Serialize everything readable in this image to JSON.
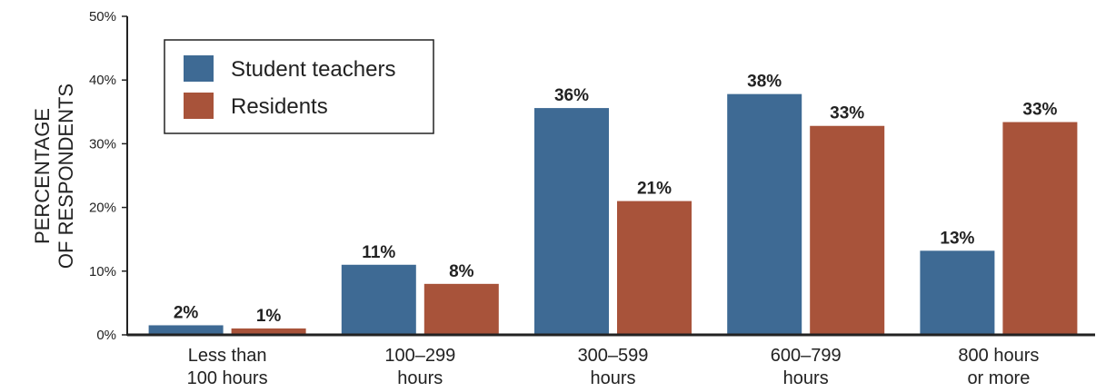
{
  "chart_data": {
    "type": "bar",
    "title": "",
    "xlabel": "",
    "ylabel_lines": [
      "PERCENTAGE",
      "OF RESPONDENTS"
    ],
    "ylim": [
      0,
      50
    ],
    "yticks": [
      "0%",
      "10%",
      "20%",
      "30%",
      "40%",
      "50%"
    ],
    "categories": [
      [
        "Less than",
        "100 hours"
      ],
      [
        "100–299",
        "hours"
      ],
      [
        "300–599",
        "hours"
      ],
      [
        "600–799",
        "hours"
      ],
      [
        "800 hours",
        "or more"
      ]
    ],
    "series": [
      {
        "name": "Student teachers",
        "color": "#3e6a94",
        "values": [
          1.5,
          11,
          35.6,
          37.8,
          13.2
        ],
        "labels": [
          "2%",
          "11%",
          "36%",
          "38%",
          "13%"
        ]
      },
      {
        "name": "Residents",
        "color": "#a8533a",
        "values": [
          1,
          8,
          21,
          32.8,
          33.4
        ],
        "labels": [
          "1%",
          "8%",
          "21%",
          "33%",
          "33%"
        ]
      }
    ],
    "legend_position": "top-left",
    "grid": false
  }
}
